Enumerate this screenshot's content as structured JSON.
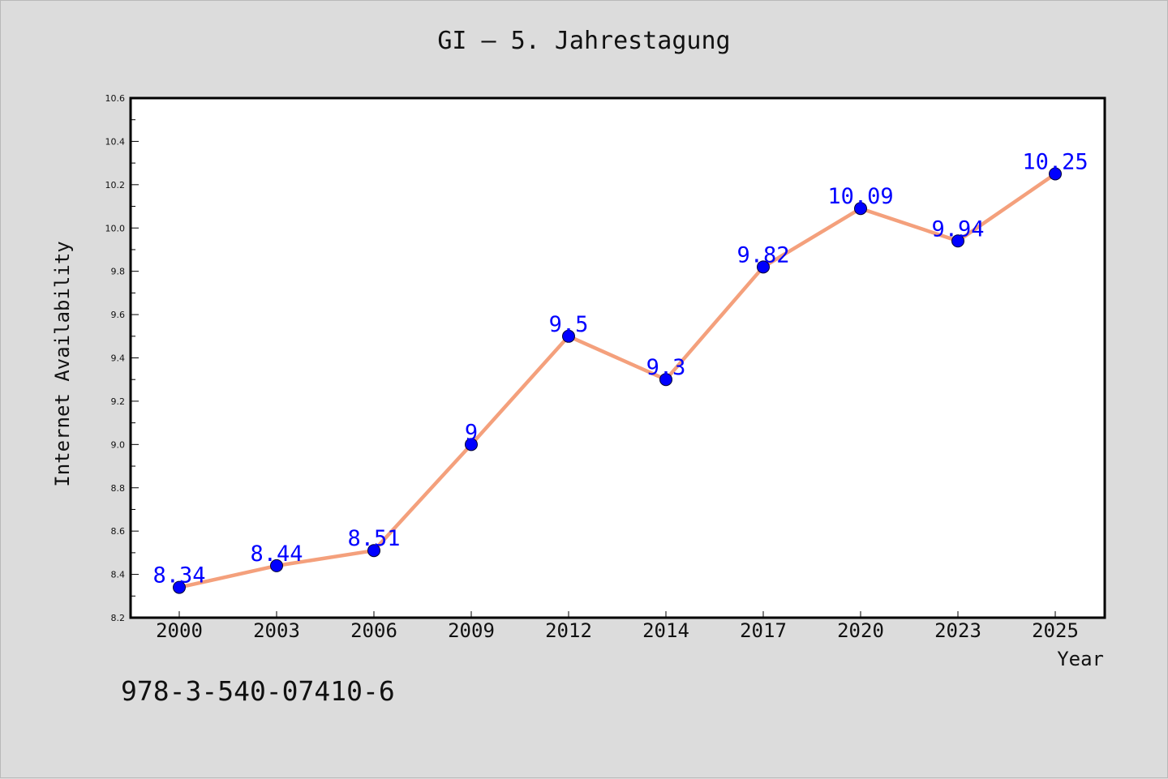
{
  "chart_data": {
    "type": "line",
    "title": "GI – 5. Jahrestagung",
    "xlabel": "Year",
    "ylabel": "Internet Availability",
    "categories": [
      "2000",
      "2003",
      "2006",
      "2009",
      "2012",
      "2014",
      "2017",
      "2020",
      "2023",
      "2025"
    ],
    "series": [
      {
        "values": [
          8.34,
          8.44,
          8.51,
          9,
          9.5,
          9.3,
          9.82,
          10.09,
          9.94,
          10.25
        ],
        "labels": [
          "8.34",
          "8.44",
          "8.51",
          "9",
          "9.5",
          "9.3",
          "9.82",
          "10.09",
          "9.94",
          "10.25"
        ],
        "line_color": "#f4a07c",
        "marker_color": "#0000ff"
      }
    ],
    "ylim": [
      8.2,
      10.6
    ],
    "yticks": [
      "8.2",
      "8.4",
      "8.6",
      "8.8",
      "9.0",
      "9.2",
      "9.4",
      "9.6",
      "9.8",
      "10.0",
      "10.2",
      "10.4",
      "10.6"
    ],
    "grid": false,
    "legend": "none"
  },
  "footer": {
    "text": "978-3-540-07410-6"
  }
}
